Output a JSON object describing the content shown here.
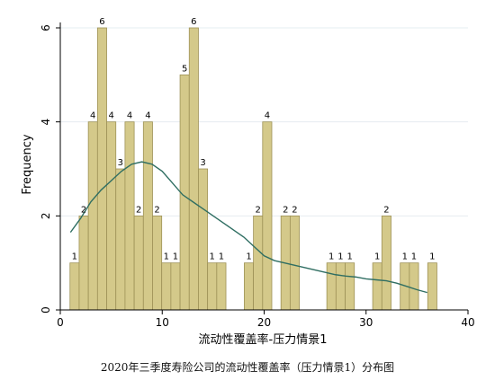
{
  "caption": "2020年三季度寿险公司的流动性覆盖率（压力情景1）分布图",
  "chart_data": {
    "type": "bar",
    "subtype": "histogram",
    "xlabel": "流动性覆盖率-压力情景1",
    "ylabel": "Frequency",
    "xlim": [
      0,
      40
    ],
    "ylim": [
      0,
      6
    ],
    "x_ticks": [
      0,
      10,
      20,
      30,
      40
    ],
    "y_ticks": [
      0,
      2,
      4,
      6
    ],
    "bin_width": 0.9,
    "bins": [
      {
        "x": 1.4,
        "value": 1
      },
      {
        "x": 2.3,
        "value": 2
      },
      {
        "x": 3.2,
        "value": 4
      },
      {
        "x": 4.1,
        "value": 6
      },
      {
        "x": 5.0,
        "value": 4
      },
      {
        "x": 5.9,
        "value": 3
      },
      {
        "x": 6.8,
        "value": 4
      },
      {
        "x": 7.7,
        "value": 2
      },
      {
        "x": 8.6,
        "value": 4
      },
      {
        "x": 9.5,
        "value": 2
      },
      {
        "x": 10.4,
        "value": 1
      },
      {
        "x": 11.3,
        "value": 1
      },
      {
        "x": 12.2,
        "value": 5
      },
      {
        "x": 13.1,
        "value": 6
      },
      {
        "x": 14.0,
        "value": 3
      },
      {
        "x": 14.9,
        "value": 1
      },
      {
        "x": 15.8,
        "value": 1
      },
      {
        "x": 18.5,
        "value": 1
      },
      {
        "x": 19.4,
        "value": 2
      },
      {
        "x": 20.3,
        "value": 4
      },
      {
        "x": 22.1,
        "value": 2
      },
      {
        "x": 23.0,
        "value": 2
      },
      {
        "x": 26.6,
        "value": 1
      },
      {
        "x": 27.5,
        "value": 1
      },
      {
        "x": 28.4,
        "value": 1
      },
      {
        "x": 31.1,
        "value": 1
      },
      {
        "x": 32.0,
        "value": 2
      },
      {
        "x": 33.8,
        "value": 1
      },
      {
        "x": 34.7,
        "value": 1
      },
      {
        "x": 36.5,
        "value": 1
      }
    ],
    "density_curve": {
      "x": [
        1,
        2,
        3,
        4,
        5,
        6,
        7,
        8,
        9,
        10,
        11,
        12,
        13,
        14,
        15,
        16,
        17,
        18,
        19,
        20,
        21,
        22,
        23,
        24,
        25,
        26,
        27,
        28,
        29,
        30,
        31,
        32,
        33,
        34,
        35,
        36
      ],
      "y": [
        1.65,
        1.95,
        2.3,
        2.55,
        2.75,
        2.95,
        3.1,
        3.15,
        3.1,
        2.95,
        2.7,
        2.45,
        2.3,
        2.15,
        2.0,
        1.85,
        1.7,
        1.55,
        1.35,
        1.15,
        1.05,
        1.0,
        0.95,
        0.9,
        0.85,
        0.8,
        0.75,
        0.72,
        0.7,
        0.66,
        0.64,
        0.62,
        0.57,
        0.5,
        0.43,
        0.37
      ]
    },
    "colors": {
      "bar_fill": "#d4c98a",
      "bar_stroke": "#9e9257",
      "curve": "#2f6e62",
      "grid": "#e6ecf0",
      "axis": "#000000"
    },
    "grid": true
  }
}
